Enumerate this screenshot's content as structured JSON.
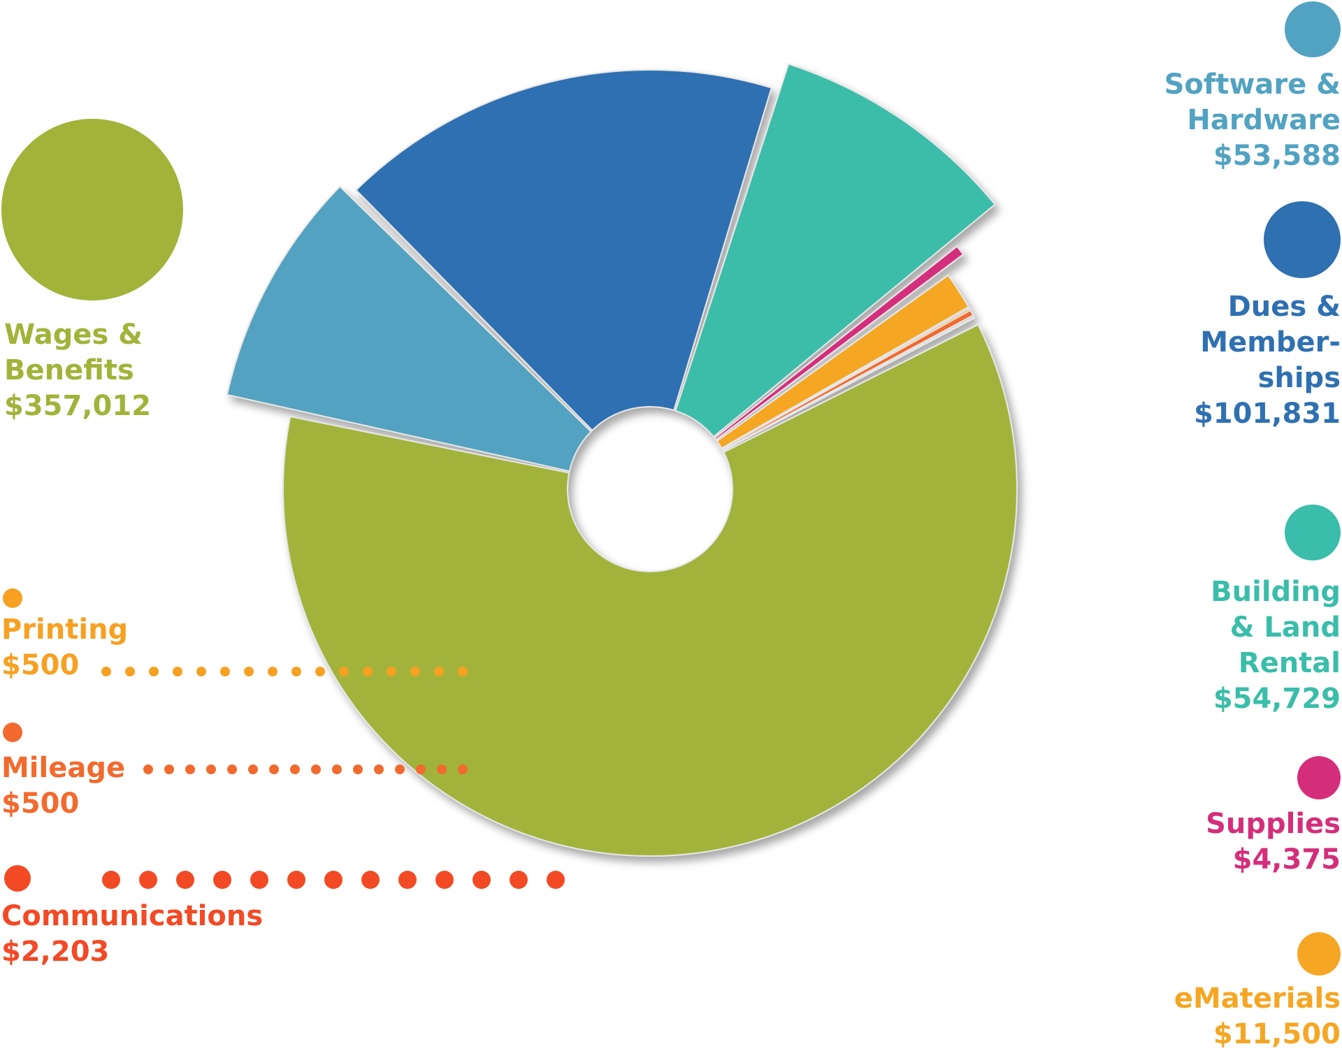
{
  "chart_data": {
    "type": "pie",
    "style": "donut",
    "slices": [
      {
        "name": "Wages & Benefits",
        "label_lines": [
          "Wages &",
          "Benefits"
        ],
        "value_label": "$357,012",
        "value": 357012,
        "color": "#a2b33a"
      },
      {
        "name": "Software & Hardware",
        "label_lines": [
          "Software &",
          "Hardware"
        ],
        "value_label": "$53,588",
        "value": 53588,
        "color": "#52a2c1"
      },
      {
        "name": "Dues & Memberships",
        "label_lines": [
          "Dues &",
          "Member-",
          "ships"
        ],
        "value_label": "$101,831",
        "value": 101831,
        "color": "#2f70b1"
      },
      {
        "name": "Building & Land Rental",
        "label_lines": [
          "Building",
          "& Land",
          "Rental"
        ],
        "value_label": "$54,729",
        "value": 54729,
        "color": "#3abdaa"
      },
      {
        "name": "Supplies",
        "label_lines": [
          "Supplies"
        ],
        "value_label": "$4,375",
        "value": 4375,
        "color": "#d42e7b"
      },
      {
        "name": "eMaterials",
        "label_lines": [
          "eMaterials"
        ],
        "value_label": "$11,500",
        "value": 11500,
        "color": "#f5a623"
      },
      {
        "name": "Printing",
        "label_lines": [
          "Printing"
        ],
        "value_label": "$500",
        "value": 500,
        "color": "#f7a022"
      },
      {
        "name": "Mileage",
        "label_lines": [
          "Mileage"
        ],
        "value_label": "$500",
        "value": 500,
        "color": "#f26a2e"
      },
      {
        "name": "Communications",
        "label_lines": [
          "Communications"
        ],
        "value_label": "$2,203",
        "value": 2203,
        "color": "#f24a25"
      }
    ]
  }
}
